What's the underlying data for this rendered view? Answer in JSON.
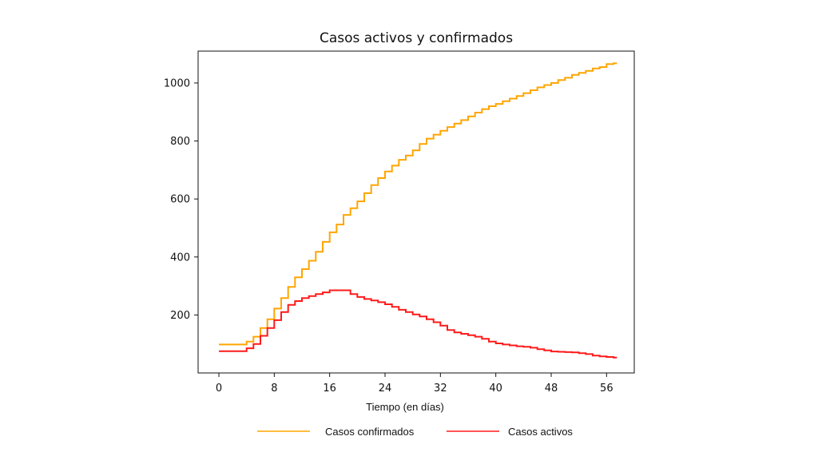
{
  "chart_data": {
    "type": "line",
    "title": "Casos activos y confirmados",
    "xlabel": "Tiempo (en días)",
    "ylabel": "",
    "xlim": [
      -3,
      60
    ],
    "ylim": [
      0,
      1110
    ],
    "xticks": [
      0,
      8,
      16,
      24,
      32,
      40,
      48,
      56
    ],
    "yticks": [
      200,
      400,
      600,
      800,
      1000
    ],
    "grid": false,
    "legend_position": "bottom",
    "series": [
      {
        "name": "Casos confirmados",
        "color": "#FFA500",
        "x": [
          0,
          1,
          2,
          3,
          4,
          5,
          6,
          7,
          8,
          9,
          10,
          11,
          12,
          13,
          14,
          15,
          16,
          17,
          18,
          19,
          20,
          21,
          22,
          23,
          24,
          25,
          26,
          27,
          28,
          29,
          30,
          31,
          32,
          33,
          34,
          35,
          36,
          37,
          38,
          39,
          40,
          41,
          42,
          43,
          44,
          45,
          46,
          47,
          48,
          49,
          50,
          51,
          52,
          53,
          54,
          55,
          56,
          57
        ],
        "y": [
          98,
          98,
          98,
          98,
          108,
          125,
          155,
          185,
          222,
          258,
          297,
          330,
          358,
          387,
          418,
          452,
          485,
          512,
          545,
          568,
          592,
          620,
          648,
          672,
          695,
          715,
          735,
          750,
          768,
          790,
          808,
          822,
          835,
          848,
          860,
          872,
          885,
          898,
          910,
          920,
          928,
          937,
          946,
          955,
          965,
          975,
          985,
          993,
          1000,
          1010,
          1018,
          1028,
          1035,
          1042,
          1050,
          1055,
          1065,
          1068
        ]
      },
      {
        "name": "Casos activos",
        "color": "#FF1A1A",
        "x": [
          0,
          1,
          2,
          3,
          4,
          5,
          6,
          7,
          8,
          9,
          10,
          11,
          12,
          13,
          14,
          15,
          16,
          17,
          18,
          19,
          20,
          21,
          22,
          23,
          24,
          25,
          26,
          27,
          28,
          29,
          30,
          31,
          32,
          33,
          34,
          35,
          36,
          37,
          38,
          39,
          40,
          41,
          42,
          43,
          44,
          45,
          46,
          47,
          48,
          49,
          50,
          51,
          52,
          53,
          54,
          55,
          56,
          57
        ],
        "y": [
          75,
          75,
          75,
          75,
          85,
          100,
          128,
          155,
          182,
          210,
          235,
          248,
          258,
          265,
          272,
          278,
          285,
          285,
          285,
          272,
          262,
          255,
          250,
          244,
          237,
          228,
          218,
          210,
          202,
          195,
          185,
          175,
          163,
          148,
          140,
          135,
          130,
          125,
          118,
          108,
          102,
          98,
          95,
          92,
          90,
          87,
          82,
          78,
          74,
          73,
          72,
          71,
          68,
          65,
          60,
          57,
          55,
          53
        ]
      }
    ]
  }
}
